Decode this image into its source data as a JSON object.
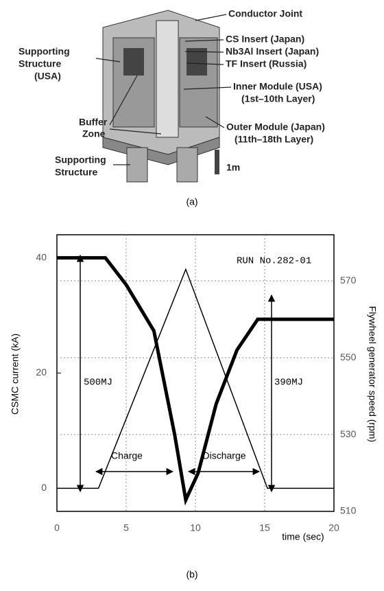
{
  "diagram": {
    "labels": [
      "Conductor Joint",
      "CS Insert (Japan)",
      "Nb3Al Insert (Japan)",
      "TF Insert (Russia)",
      "Inner Module (USA)",
      "(1st–10th Layer)",
      "Outer Module (Japan)",
      "(11th–18th Layer)",
      "Supporting",
      "Structure",
      "(USA)",
      "Buffer",
      "Zone",
      "Supporting",
      "Structure",
      "1m"
    ],
    "caption": "(a)"
  },
  "chart_data": {
    "type": "line",
    "caption": "(b)",
    "xlabel": "time (sec)",
    "ylabel": "CSMC current (kA)",
    "y2label": "Flywheel generator speed (rpm)",
    "annotations": [
      "RUN No.282-01",
      "500MJ",
      "390MJ",
      "Charge",
      "Discharge"
    ],
    "xlim": [
      0,
      20
    ],
    "xticks": [
      0,
      5,
      10,
      15,
      20
    ],
    "ylim": [
      -4,
      44
    ],
    "yticks": [
      0,
      20,
      40
    ],
    "y2lim": [
      510,
      582
    ],
    "y2ticks": [
      510,
      530,
      550,
      570
    ],
    "grid": true,
    "series": [
      {
        "color": "#000000",
        "x": [
          0,
          3,
          9.3,
          15.2,
          20
        ],
        "values": [
          0,
          0,
          38,
          0,
          0
        ]
      },
      {
        "color": "#000000",
        "axis": "y2",
        "x": [
          0,
          3.5,
          5,
          7,
          8.5,
          9.3,
          10.2,
          11.5,
          13,
          14.5,
          20
        ],
        "values": [
          576,
          576,
          569,
          557,
          530,
          513,
          520,
          538,
          552,
          560,
          560
        ]
      }
    ]
  }
}
